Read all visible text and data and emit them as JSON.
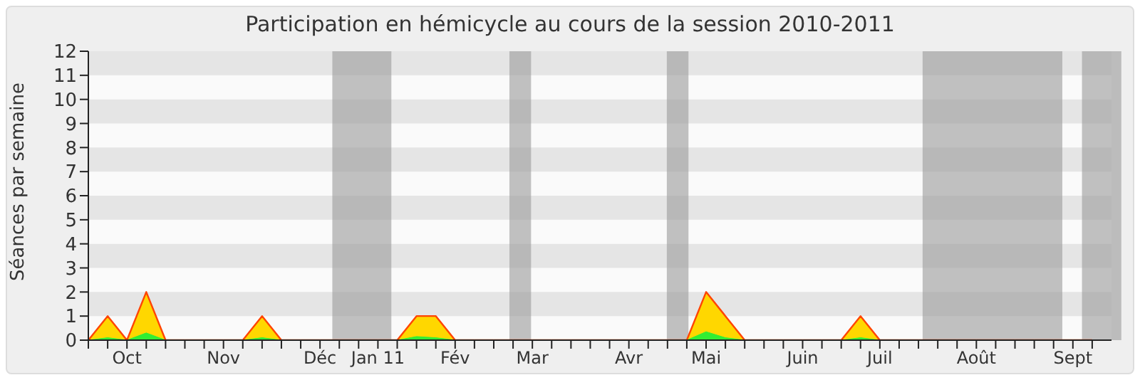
{
  "chart_data": {
    "type": "area",
    "title": "Participation en hémicycle au cours de la session 2010-2011",
    "ylabel": "Séances par semaine",
    "categories": [
      null,
      null,
      "Oct",
      null,
      null,
      null,
      null,
      "Nov",
      null,
      null,
      null,
      null,
      "Déc",
      null,
      null,
      "Jan 11",
      null,
      null,
      null,
      "Fév",
      null,
      null,
      null,
      "Mar",
      null,
      null,
      null,
      null,
      "Avr",
      null,
      null,
      null,
      "Mai",
      null,
      null,
      null,
      null,
      "Juin",
      null,
      null,
      null,
      "Juil",
      null,
      null,
      null,
      null,
      "Août",
      null,
      null,
      null,
      null,
      "Sept",
      null
    ],
    "series": [
      {
        "color": "#ffd700",
        "values": [
          0,
          1,
          0,
          2,
          0,
          0,
          0,
          0,
          0,
          1,
          0,
          0,
          0,
          0,
          0,
          0,
          0,
          1,
          1,
          0,
          0,
          0,
          0,
          0,
          0,
          0,
          0,
          0,
          0,
          0,
          0,
          0,
          2,
          1,
          0,
          0,
          0,
          0,
          0,
          0,
          1,
          0,
          0,
          0,
          0,
          0,
          0,
          0,
          0,
          0,
          0,
          0,
          0
        ]
      },
      {
        "color": "#33ee33",
        "values": [
          0,
          0.1,
          0,
          0.3,
          0,
          0,
          0,
          0,
          0,
          0.1,
          0,
          0,
          0,
          0,
          0,
          0,
          0,
          0.15,
          0.1,
          0,
          0,
          0,
          0,
          0,
          0,
          0,
          0,
          0,
          0,
          0,
          0,
          0,
          0.35,
          0.1,
          0,
          0,
          0,
          0,
          0,
          0,
          0.1,
          0,
          0,
          0,
          0,
          0,
          0,
          0,
          0,
          0,
          0,
          0,
          0
        ]
      }
    ],
    "ylim": [
      0,
      12
    ],
    "yticks": [
      0,
      1,
      2,
      3,
      4,
      5,
      6,
      7,
      8,
      9,
      10,
      11,
      12
    ]
  }
}
